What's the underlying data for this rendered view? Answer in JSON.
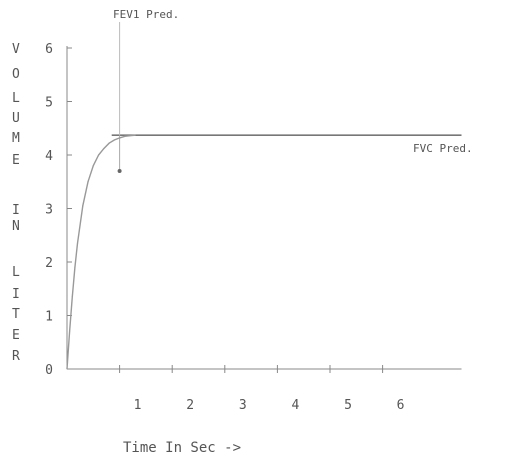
{
  "chart_data": {
    "type": "line",
    "title": "",
    "xlabel": "Time In Sec ->",
    "ylabel": "VOLUME IN LITER",
    "ylabel_letters": [
      "V",
      "O",
      "L",
      "U",
      "M",
      "E",
      "I",
      "N",
      "L",
      "I",
      "T",
      "E",
      "R"
    ],
    "xlim": [
      0,
      7.5
    ],
    "ylim": [
      0,
      6
    ],
    "x_ticks": [
      1,
      2,
      3,
      4,
      5,
      6
    ],
    "y_ticks": [
      0,
      1,
      2,
      3,
      4,
      5,
      6
    ],
    "x_tick_labels": [
      "1",
      "2",
      "3",
      "4",
      "5",
      "6"
    ],
    "y_tick_labels": [
      "0",
      "1",
      "2",
      "3",
      "4",
      "5",
      "6"
    ],
    "grid": false,
    "legend": "none",
    "series": [
      {
        "x": [
          0,
          0.05,
          0.1,
          0.15,
          0.2,
          0.3,
          0.4,
          0.5,
          0.6,
          0.7,
          0.8,
          0.9,
          1.0,
          1.1,
          1.2,
          1.3
        ],
        "y": [
          0,
          0.7,
          1.35,
          1.9,
          2.35,
          3.05,
          3.5,
          3.8,
          4.0,
          4.12,
          4.22,
          4.28,
          4.32,
          4.35,
          4.36,
          4.37
        ]
      }
    ],
    "reference_lines": {
      "fvc_pred": {
        "y": 4.37,
        "x_end": 7.5,
        "label": "FVC Pred."
      },
      "fev1_pred": {
        "x": 1.0,
        "label": "FEV1 Pred."
      }
    },
    "marker": {
      "x": 1.0,
      "y": 3.7
    },
    "colors": {
      "axis": "#888888",
      "curve": "#999999",
      "reference": "#777777",
      "text": "#555555"
    }
  }
}
